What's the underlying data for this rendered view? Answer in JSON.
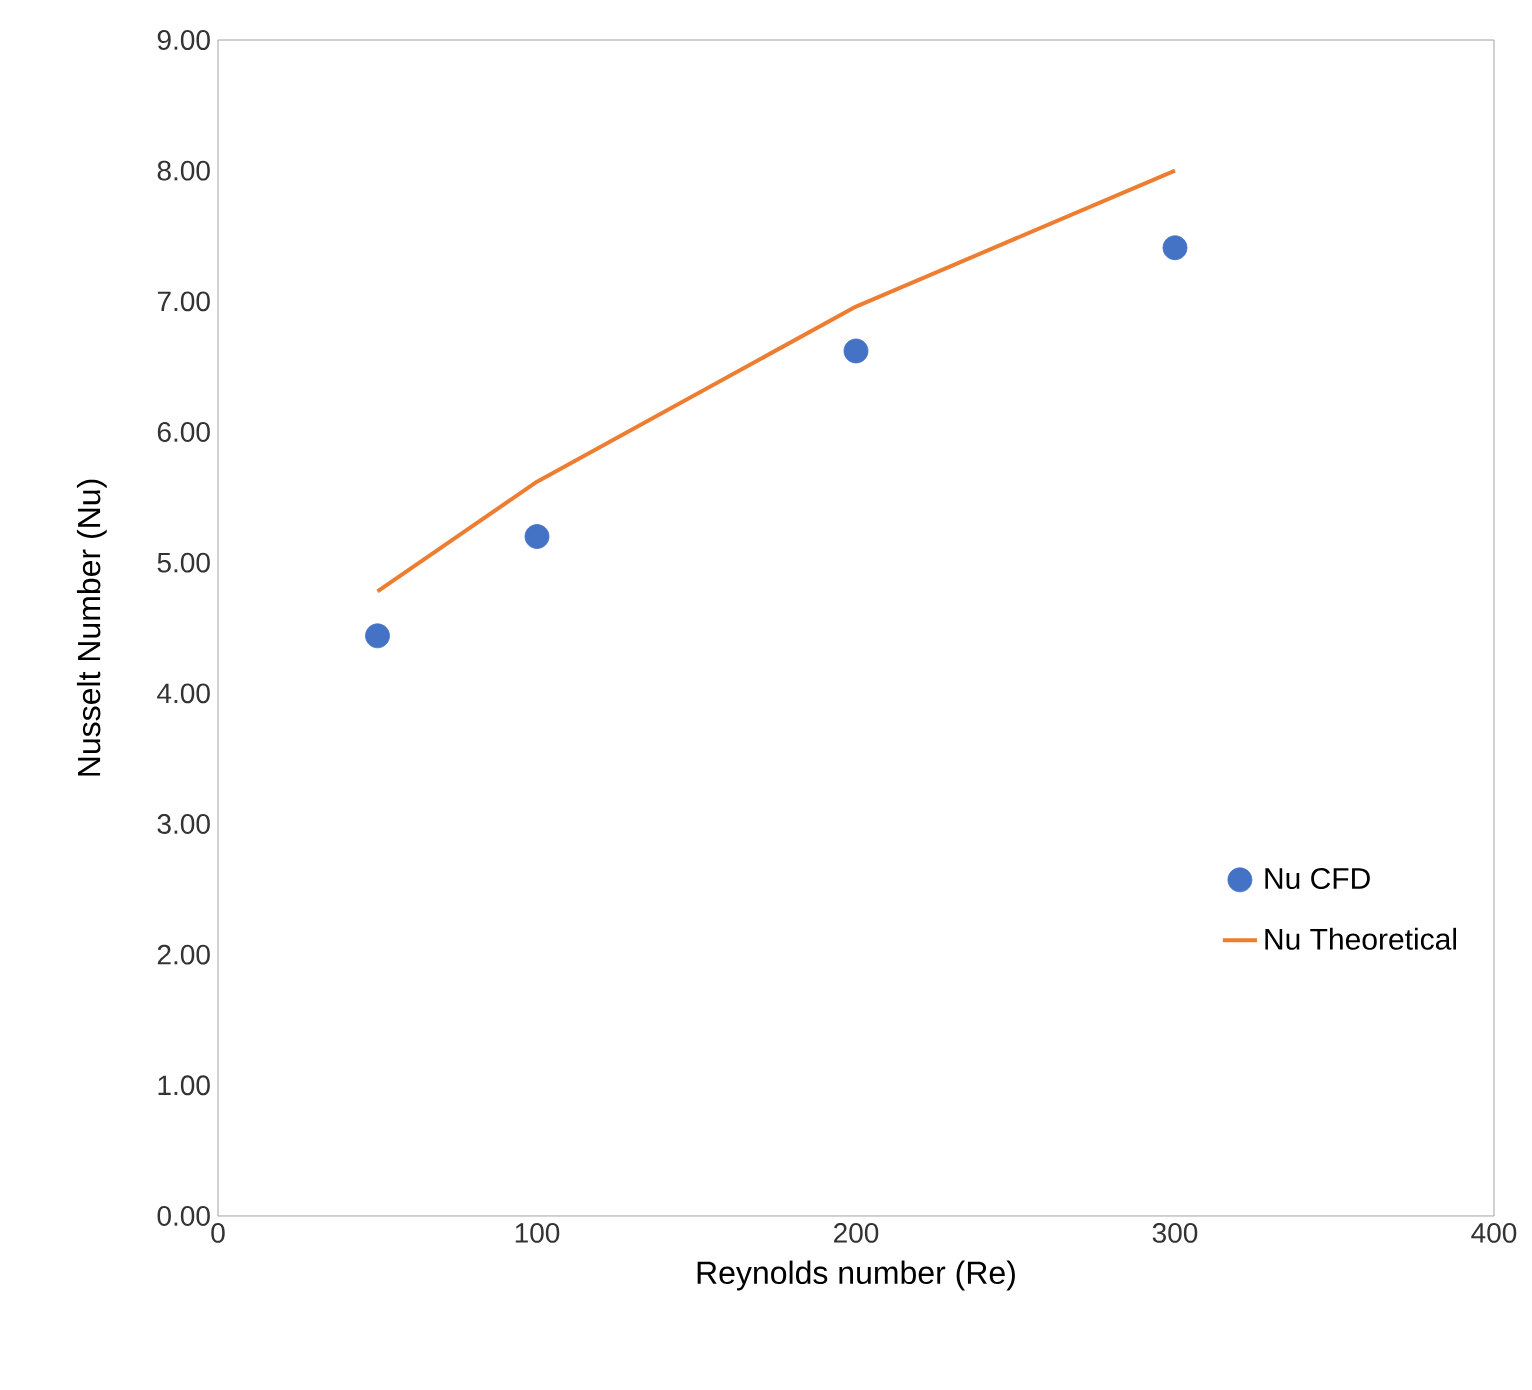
{
  "chart_data": {
    "type": "scatter",
    "xlabel": "Reynolds number (Re)",
    "ylabel": "Nusselt Number (Nu)",
    "x": [
      50,
      100,
      200,
      300
    ],
    "series": [
      {
        "name": "Nu CFD",
        "color": "#4472c4",
        "marker": "circle",
        "values": [
          4.44,
          5.2,
          6.62,
          7.41
        ]
      },
      {
        "name": "Nu Theoretical",
        "type": "line",
        "color": "#ed7d31",
        "marker": "none",
        "line_style": "solid",
        "values": [
          4.78,
          5.62,
          6.96,
          8.0
        ]
      }
    ],
    "xlim": [
      0,
      400
    ],
    "xticks": [
      0,
      100,
      200,
      300,
      400
    ],
    "ylim": [
      0,
      9
    ],
    "yticks": [
      {
        "value": 0,
        "label": "0.00"
      },
      {
        "value": 1,
        "label": "1.00"
      },
      {
        "value": 2,
        "label": "2.00"
      },
      {
        "value": 3,
        "label": "3.00"
      },
      {
        "value": 4,
        "label": "4.00"
      },
      {
        "value": 5,
        "label": "5.00"
      },
      {
        "value": 6,
        "label": "6.00"
      },
      {
        "value": 7,
        "label": "7.00"
      },
      {
        "value": 8,
        "label": "8.00"
      },
      {
        "value": 9,
        "label": "9.00"
      }
    ],
    "legend": "right"
  }
}
